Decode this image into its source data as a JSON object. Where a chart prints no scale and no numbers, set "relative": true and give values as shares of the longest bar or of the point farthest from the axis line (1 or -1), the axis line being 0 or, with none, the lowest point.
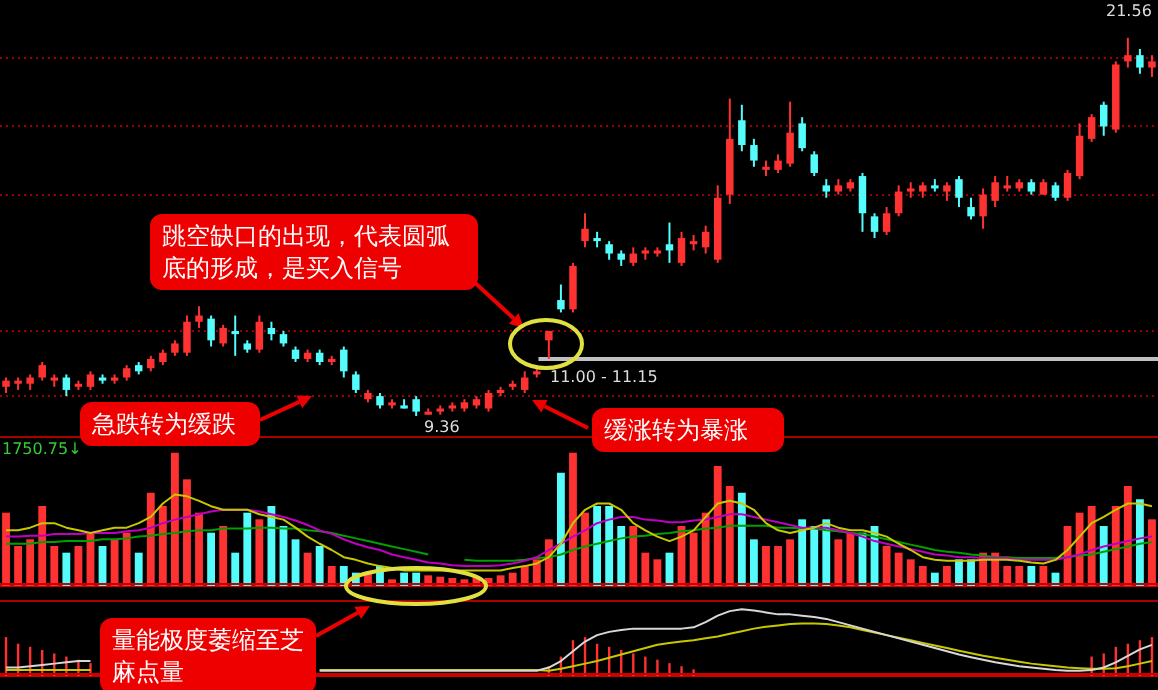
{
  "chart_data": [
    {
      "type": "candlestick",
      "categories": [
        null,
        null,
        null,
        null,
        null,
        null,
        null,
        null,
        null,
        null,
        null,
        null,
        null,
        null,
        null,
        null,
        null,
        null,
        null,
        null,
        null,
        null,
        null,
        null,
        null,
        null,
        null,
        null,
        null,
        null,
        null,
        null,
        null,
        null,
        null,
        null,
        null,
        null,
        null,
        null,
        null,
        null,
        null,
        null,
        null,
        null,
        null,
        null,
        null,
        null,
        null,
        null,
        null,
        null,
        null,
        null,
        null,
        null,
        null,
        null,
        null,
        null,
        null,
        null,
        null,
        null,
        null,
        null,
        null,
        null,
        null,
        null,
        null,
        null,
        null,
        null,
        null,
        null,
        null,
        null,
        null,
        null,
        null,
        null,
        null,
        null,
        null,
        null,
        null,
        null,
        null,
        null,
        null,
        null,
        null,
        null
      ],
      "ohlc": [
        [
          10.3,
          10.6,
          10.1,
          10.5
        ],
        [
          10.4,
          10.6,
          10.2,
          10.5
        ],
        [
          10.4,
          10.7,
          10.2,
          10.6
        ],
        [
          10.6,
          11.1,
          10.5,
          11.0
        ],
        [
          10.5,
          10.7,
          10.3,
          10.6
        ],
        [
          10.6,
          10.7,
          10.0,
          10.2
        ],
        [
          10.3,
          10.5,
          10.2,
          10.4
        ],
        [
          10.3,
          10.8,
          10.2,
          10.7
        ],
        [
          10.6,
          10.7,
          10.4,
          10.5
        ],
        [
          10.5,
          10.7,
          10.4,
          10.6
        ],
        [
          10.6,
          11.0,
          10.5,
          10.9
        ],
        [
          11.0,
          11.1,
          10.7,
          10.8
        ],
        [
          10.9,
          11.3,
          10.8,
          11.2
        ],
        [
          11.1,
          11.5,
          11.0,
          11.4
        ],
        [
          11.4,
          11.8,
          11.3,
          11.7
        ],
        [
          11.4,
          12.6,
          11.3,
          12.4
        ],
        [
          12.4,
          12.9,
          12.2,
          12.6
        ],
        [
          12.5,
          12.6,
          11.6,
          11.8
        ],
        [
          11.7,
          12.3,
          11.6,
          12.2
        ],
        [
          12.1,
          12.6,
          11.3,
          12.0
        ],
        [
          11.7,
          11.8,
          11.4,
          11.5
        ],
        [
          11.5,
          12.6,
          11.4,
          12.4
        ],
        [
          12.2,
          12.4,
          11.8,
          12.0
        ],
        [
          12.0,
          12.1,
          11.6,
          11.7
        ],
        [
          11.5,
          11.6,
          11.1,
          11.2
        ],
        [
          11.2,
          11.5,
          11.1,
          11.4
        ],
        [
          11.4,
          11.5,
          11.0,
          11.1
        ],
        [
          11.1,
          11.3,
          11.0,
          11.2
        ],
        [
          11.5,
          11.6,
          10.6,
          10.8
        ],
        [
          10.7,
          10.8,
          10.1,
          10.2
        ],
        [
          9.9,
          10.2,
          9.8,
          10.1
        ],
        [
          10.0,
          10.1,
          9.6,
          9.7
        ],
        [
          9.7,
          9.9,
          9.6,
          9.8
        ],
        [
          9.7,
          9.9,
          9.6,
          9.6
        ],
        [
          9.9,
          10.0,
          9.36,
          9.5
        ],
        [
          9.4,
          9.6,
          9.4,
          9.5
        ],
        [
          9.5,
          9.7,
          9.4,
          9.6
        ],
        [
          9.6,
          9.8,
          9.5,
          9.7
        ],
        [
          9.6,
          9.9,
          9.5,
          9.8
        ],
        [
          9.7,
          10.0,
          9.6,
          9.9
        ],
        [
          9.6,
          10.2,
          9.5,
          10.1
        ],
        [
          10.1,
          10.3,
          10.0,
          10.2
        ],
        [
          10.3,
          10.5,
          10.2,
          10.4
        ],
        [
          10.2,
          10.8,
          10.1,
          10.6
        ],
        [
          10.7,
          10.9,
          10.6,
          10.8
        ],
        [
          11.8,
          12.1,
          11.2,
          12.1
        ],
        [
          13.1,
          13.6,
          12.7,
          12.8
        ],
        [
          12.8,
          14.3,
          12.7,
          14.2
        ],
        [
          15.0,
          15.9,
          14.8,
          15.4
        ],
        [
          15.1,
          15.3,
          14.8,
          15.0
        ],
        [
          14.9,
          15.0,
          14.4,
          14.6
        ],
        [
          14.6,
          14.7,
          14.2,
          14.4
        ],
        [
          14.3,
          14.8,
          14.2,
          14.6
        ],
        [
          14.6,
          14.8,
          14.4,
          14.7
        ],
        [
          14.6,
          14.8,
          14.5,
          14.7
        ],
        [
          14.9,
          15.6,
          14.3,
          14.7
        ],
        [
          14.3,
          15.3,
          14.2,
          15.1
        ],
        [
          14.9,
          15.2,
          14.7,
          15.0
        ],
        [
          14.8,
          15.5,
          14.6,
          15.3
        ],
        [
          14.4,
          16.8,
          14.3,
          16.4
        ],
        [
          16.5,
          19.6,
          16.2,
          18.3
        ],
        [
          18.9,
          19.4,
          17.9,
          18.1
        ],
        [
          18.1,
          18.3,
          17.4,
          17.6
        ],
        [
          17.3,
          17.6,
          17.1,
          17.4
        ],
        [
          17.3,
          17.8,
          17.2,
          17.6
        ],
        [
          17.5,
          19.5,
          17.4,
          18.5
        ],
        [
          18.8,
          19.0,
          17.9,
          18.0
        ],
        [
          17.8,
          17.9,
          17.1,
          17.2
        ],
        [
          16.8,
          17.0,
          16.4,
          16.6
        ],
        [
          16.6,
          17.0,
          16.5,
          16.8
        ],
        [
          16.7,
          17.0,
          16.6,
          16.9
        ],
        [
          17.1,
          17.2,
          15.3,
          15.9
        ],
        [
          15.8,
          15.9,
          15.1,
          15.3
        ],
        [
          15.3,
          16.1,
          15.2,
          15.9
        ],
        [
          15.9,
          16.8,
          15.8,
          16.6
        ],
        [
          16.6,
          16.9,
          16.4,
          16.7
        ],
        [
          16.6,
          16.9,
          16.4,
          16.8
        ],
        [
          16.8,
          17.0,
          16.6,
          16.7
        ],
        [
          16.6,
          16.9,
          16.3,
          16.8
        ],
        [
          17.0,
          17.1,
          16.1,
          16.4
        ],
        [
          16.1,
          16.4,
          15.7,
          15.8
        ],
        [
          15.8,
          16.7,
          15.4,
          16.5
        ],
        [
          16.3,
          17.1,
          16.1,
          16.9
        ],
        [
          16.7,
          17.1,
          16.6,
          16.8
        ],
        [
          16.7,
          17.0,
          16.6,
          16.9
        ],
        [
          16.9,
          17.0,
          16.5,
          16.6
        ],
        [
          16.5,
          17.0,
          16.5,
          16.9
        ],
        [
          16.8,
          16.9,
          16.3,
          16.4
        ],
        [
          16.4,
          17.3,
          16.3,
          17.2
        ],
        [
          17.1,
          18.8,
          17.0,
          18.4
        ],
        [
          18.3,
          19.1,
          18.2,
          19.0
        ],
        [
          19.4,
          19.5,
          18.4,
          18.7
        ],
        [
          18.6,
          20.8,
          18.5,
          20.7
        ],
        [
          20.8,
          21.56,
          20.6,
          21.0
        ],
        [
          21.0,
          21.2,
          20.4,
          20.6
        ],
        [
          20.6,
          21.0,
          20.3,
          20.8
        ]
      ],
      "colors": [
        "#ff3232",
        "#ff3232",
        "#ff3232",
        "#ff3232",
        "#ff3232",
        "#54fcfc",
        "#ff3232",
        "#ff3232",
        "#54fcfc",
        "#ff3232",
        "#ff3232",
        "#54fcfc",
        "#ff3232",
        "#ff3232",
        "#ff3232",
        "#ff3232",
        "#ff3232",
        "#54fcfc",
        "#ff3232",
        "#54fcfc",
        "#54fcfc",
        "#ff3232",
        "#54fcfc",
        "#54fcfc",
        "#54fcfc",
        "#ff3232",
        "#54fcfc",
        "#ff3232",
        "#54fcfc",
        "#54fcfc",
        "#ff3232",
        "#54fcfc",
        "#ff3232",
        "#54fcfc",
        "#54fcfc",
        "#ff3232",
        "#ff3232",
        "#ff3232",
        "#ff3232",
        "#ff3232",
        "#ff3232",
        "#ff3232",
        "#ff3232",
        "#ff3232",
        "#ff3232",
        "#ff3232",
        "#54fcfc",
        "#ff3232",
        "#ff3232",
        "#54fcfc",
        "#54fcfc",
        "#54fcfc",
        "#ff3232",
        "#ff3232",
        "#ff3232",
        "#54fcfc",
        "#ff3232",
        "#ff3232",
        "#ff3232",
        "#ff3232",
        "#ff3232",
        "#54fcfc",
        "#54fcfc",
        "#ff3232",
        "#ff3232",
        "#ff3232",
        "#54fcfc",
        "#54fcfc",
        "#54fcfc",
        "#ff3232",
        "#ff3232",
        "#54fcfc",
        "#54fcfc",
        "#ff3232",
        "#ff3232",
        "#ff3232",
        "#ff3232",
        "#54fcfc",
        "#ff3232",
        "#54fcfc",
        "#54fcfc",
        "#ff3232",
        "#ff3232",
        "#ff3232",
        "#ff3232",
        "#54fcfc",
        "#ff3232",
        "#54fcfc",
        "#ff3232",
        "#ff3232",
        "#ff3232",
        "#54fcfc",
        "#ff3232",
        "#ff3232",
        "#54fcfc",
        "#ff3232"
      ],
      "yticks": [
        {
          "value": 10.0,
          "label": null
        },
        {
          "value": 12.1,
          "label": null
        },
        {
          "value": 16.5,
          "label": null
        },
        {
          "value": 18.7,
          "label": null
        },
        {
          "value": 20.9,
          "label": null
        }
      ],
      "grid": "y",
      "tick_labels": false,
      "ref_lines": [
        {
          "axis": "y",
          "value": 11.2,
          "color": "#c0c0c0"
        }
      ],
      "annotations": [
        "跳空缺口的出现，代表圆弧底的形成，是买入信号",
        "急跌转为缓跌",
        "缓涨转为暴涨",
        "21.56",
        "9.36",
        "11.00 - 11.15"
      ]
    },
    {
      "type": "bar",
      "relative": true,
      "categories": [
        null,
        null,
        null,
        null,
        null,
        null,
        null,
        null,
        null,
        null,
        null,
        null,
        null,
        null,
        null,
        null,
        null,
        null,
        null,
        null,
        null,
        null,
        null,
        null,
        null,
        null,
        null,
        null,
        null,
        null,
        null,
        null,
        null,
        null,
        null,
        null,
        null,
        null,
        null,
        null,
        null,
        null,
        null,
        null,
        null,
        null,
        null,
        null,
        null,
        null,
        null,
        null,
        null,
        null,
        null,
        null,
        null,
        null,
        null,
        null,
        null,
        null,
        null,
        null,
        null,
        null,
        null,
        null,
        null,
        null,
        null,
        null,
        null,
        null,
        null,
        null,
        null,
        null,
        null,
        null,
        null,
        null,
        null,
        null,
        null,
        null,
        null,
        null,
        null,
        null,
        null,
        null,
        null,
        null,
        null,
        null
      ],
      "colors": [
        "#ff3232",
        "#ff3232",
        "#ff3232",
        "#ff3232",
        "#ff3232",
        "#54fcfc",
        "#ff3232",
        "#ff3232",
        "#54fcfc",
        "#ff3232",
        "#ff3232",
        "#54fcfc",
        "#ff3232",
        "#ff3232",
        "#ff3232",
        "#ff3232",
        "#ff3232",
        "#54fcfc",
        "#ff3232",
        "#54fcfc",
        "#54fcfc",
        "#ff3232",
        "#54fcfc",
        "#54fcfc",
        "#54fcfc",
        "#ff3232",
        "#54fcfc",
        "#ff3232",
        "#54fcfc",
        "#54fcfc",
        "#ff3232",
        "#54fcfc",
        "#ff3232",
        "#54fcfc",
        "#54fcfc",
        "#ff3232",
        "#ff3232",
        "#ff3232",
        "#ff3232",
        "#ff3232",
        "#ff3232",
        "#ff3232",
        "#ff3232",
        "#ff3232",
        "#ff3232",
        "#ff3232",
        "#54fcfc",
        "#ff3232",
        "#ff3232",
        "#54fcfc",
        "#54fcfc",
        "#54fcfc",
        "#ff3232",
        "#ff3232",
        "#ff3232",
        "#54fcfc",
        "#ff3232",
        "#ff3232",
        "#ff3232",
        "#ff3232",
        "#ff3232",
        "#54fcfc",
        "#54fcfc",
        "#ff3232",
        "#ff3232",
        "#ff3232",
        "#54fcfc",
        "#54fcfc",
        "#54fcfc",
        "#ff3232",
        "#ff3232",
        "#54fcfc",
        "#54fcfc",
        "#ff3232",
        "#ff3232",
        "#ff3232",
        "#ff3232",
        "#54fcfc",
        "#ff3232",
        "#54fcfc",
        "#54fcfc",
        "#ff3232",
        "#ff3232",
        "#ff3232",
        "#ff3232",
        "#54fcfc",
        "#ff3232",
        "#54fcfc",
        "#ff3232",
        "#ff3232",
        "#ff3232",
        "#54fcfc",
        "#ff3232",
        "#ff3232",
        "#54fcfc",
        "#ff3232"
      ],
      "values": [
        0.55,
        0.3,
        0.35,
        0.6,
        0.3,
        0.25,
        0.3,
        0.4,
        0.3,
        0.35,
        0.4,
        0.25,
        0.7,
        0.6,
        1,
        0.8,
        0.55,
        0.4,
        0.45,
        0.25,
        0.55,
        0.5,
        0.6,
        0.45,
        0.35,
        0.25,
        0.3,
        0.15,
        0.15,
        0.1,
        0.1,
        0.15,
        0.05,
        0.1,
        0.1,
        0.08,
        0.07,
        0.06,
        0.05,
        0.07,
        0.06,
        0.08,
        0.1,
        0.15,
        0.2,
        0.35,
        0.85,
        1,
        0.55,
        0.6,
        0.6,
        0.45,
        0.45,
        0.25,
        0.2,
        0.25,
        0.45,
        0.4,
        0.55,
        0.9,
        0.75,
        0.7,
        0.35,
        0.3,
        0.3,
        0.35,
        0.5,
        0.45,
        0.5,
        0.35,
        0.4,
        0.4,
        0.45,
        0.3,
        0.25,
        0.2,
        0.15,
        0.1,
        0.15,
        0.2,
        0.2,
        0.25,
        0.25,
        0.15,
        0.15,
        0.15,
        0.15,
        0.1,
        0.45,
        0.55,
        0.6,
        0.45,
        0.6,
        0.75,
        0.65,
        0.5
      ],
      "annotations": [
        "1750.75↓",
        "量能极度萎缩至芝麻点量"
      ]
    },
    {
      "type": "line",
      "relative": true,
      "categories": [
        null,
        null,
        null,
        null,
        null,
        null,
        null,
        null,
        null,
        null,
        null,
        null,
        null,
        null,
        null,
        null,
        null,
        null,
        null,
        null,
        null,
        null,
        null,
        null,
        null,
        null,
        null,
        null,
        null,
        null,
        null,
        null,
        null,
        null,
        null,
        null,
        null,
        null,
        null,
        null,
        null,
        null,
        null,
        null,
        null,
        null,
        null,
        null,
        null,
        null,
        null,
        null,
        null,
        null,
        null,
        null,
        null,
        null,
        null,
        null,
        null,
        null,
        null,
        null,
        null,
        null,
        null,
        null,
        null,
        null,
        null,
        null,
        null,
        null,
        null,
        null,
        null,
        null,
        null,
        null,
        null,
        null,
        null,
        null,
        null,
        null,
        null,
        null,
        null,
        null,
        null,
        null,
        null,
        null,
        null,
        null
      ],
      "series": [
        {
          "color": "#c8c800",
          "values": [
            0.6,
            0.6,
            0.63,
            0.68,
            0.68,
            0.63,
            0.6,
            0.57,
            0.6,
            0.63,
            0.63,
            0.68,
            0.75,
            0.9,
            1,
            0.98,
            0.93,
            0.87,
            0.83,
            0.83,
            0.83,
            0.78,
            0.75,
            0.72,
            0.63,
            0.53,
            0.45,
            0.38,
            0.3,
            0.27,
            0.23,
            0.2,
            0.18,
            0.15,
            0.15,
            0.15,
            0.15,
            0.15,
            0.15,
            0.15,
            0.15,
            0.15,
            0.18,
            0.2,
            0.23,
            0.3,
            0.45,
            0.68,
            0.83,
            0.9,
            0.9,
            0.83,
            0.68,
            0.6,
            0.53,
            0.48,
            0.53,
            0.6,
            0.75,
            0.9,
            0.93,
            0.9,
            0.83,
            0.68,
            0.6,
            0.57,
            0.6,
            0.63,
            0.68,
            0.63,
            0.6,
            0.6,
            0.57,
            0.53,
            0.45,
            0.38,
            0.3,
            0.27,
            0.26,
            0.26,
            0.26,
            0.27,
            0.27,
            0.27,
            0.26,
            0.24,
            0.23,
            0.27,
            0.38,
            0.53,
            0.68,
            0.75,
            0.83,
            0.9,
            0.9,
            0.87
          ]
        },
        {
          "color": "#c000c0",
          "values": [
            0.53,
            0.53,
            0.54,
            0.54,
            0.56,
            0.56,
            0.56,
            0.57,
            0.57,
            0.57,
            0.59,
            0.6,
            0.63,
            0.68,
            0.72,
            0.75,
            0.78,
            0.81,
            0.83,
            0.83,
            0.83,
            0.81,
            0.78,
            0.75,
            0.71,
            0.66,
            0.6,
            0.56,
            0.5,
            0.45,
            0.41,
            0.38,
            0.33,
            0.3,
            0.27,
            0.24,
            0.23,
            0.21,
            0.2,
            0.2,
            0.2,
            0.21,
            0.23,
            0.26,
            0.3,
            0.38,
            0.45,
            0.53,
            0.6,
            0.68,
            0.72,
            0.75,
            0.75,
            0.72,
            0.71,
            0.69,
            0.69,
            0.71,
            0.72,
            0.75,
            0.78,
            0.78,
            0.75,
            0.72,
            0.69,
            0.66,
            0.63,
            0.63,
            0.63,
            0.6,
            0.57,
            0.53,
            0.48,
            0.45,
            0.42,
            0.39,
            0.36,
            0.33,
            0.32,
            0.3,
            0.3,
            0.29,
            0.29,
            0.29,
            0.27,
            0.27,
            0.27,
            0.27,
            0.3,
            0.33,
            0.38,
            0.42,
            0.45,
            0.48,
            0.51,
            0.53
          ]
        },
        {
          "color": "#00a000",
          "values": [
            0.45,
            0.45,
            0.45,
            0.47,
            0.47,
            0.48,
            0.48,
            0.48,
            0.5,
            0.5,
            0.51,
            0.53,
            0.54,
            0.56,
            0.57,
            0.59,
            0.6,
            0.6,
            0.62,
            0.62,
            0.62,
            0.63,
            0.63,
            0.62,
            0.62,
            0.6,
            0.59,
            0.57,
            0.54,
            0.51,
            0.48,
            0.45,
            0.42,
            0.39,
            0.36,
            0.33,
            null,
            null,
            0.27,
            0.26,
            0.26,
            0.26,
            0.26,
            0.27,
            0.29,
            0.3,
            0.33,
            0.38,
            0.42,
            0.45,
            0.48,
            0.51,
            0.53,
            0.54,
            0.56,
            0.57,
            0.59,
            0.6,
            0.62,
            0.63,
            0.65,
            0.65,
            0.65,
            0.65,
            0.63,
            0.63,
            0.62,
            0.62,
            0.6,
            0.59,
            0.57,
            0.56,
            0.53,
            0.5,
            0.47,
            0.44,
            0.41,
            0.38,
            0.36,
            0.35,
            0.33,
            0.32,
            0.3,
            0.3,
            0.29,
            0.29,
            0.29,
            0.29,
            0.3,
            0.32,
            0.33,
            0.36,
            0.39,
            0.42,
            0.45,
            0.47
          ]
        }
      ]
    },
    {
      "type": "bar",
      "relative": true,
      "categories": [
        null,
        null,
        null,
        null,
        null,
        null,
        null,
        null,
        null,
        null,
        null,
        null,
        null,
        null,
        null,
        null,
        null,
        null,
        null,
        null,
        null,
        null,
        null,
        null,
        null,
        null,
        null,
        null,
        null,
        null,
        null,
        null,
        null,
        null,
        null,
        null,
        null,
        null,
        null,
        null,
        null,
        null,
        null,
        null,
        null,
        null,
        null,
        null,
        null,
        null,
        null,
        null,
        null,
        null,
        null,
        null,
        null,
        null,
        null,
        null,
        null,
        null,
        null,
        null,
        null,
        null,
        null,
        null,
        null,
        null,
        null,
        null,
        null,
        null,
        null,
        null,
        null,
        null,
        null,
        null,
        null,
        null,
        null,
        null,
        null,
        null,
        null,
        null,
        null,
        null,
        null,
        null,
        null,
        null,
        null,
        null
      ],
      "color": "#ff3030",
      "values": [
        1,
        0.83,
        0.75,
        0.67,
        0.58,
        0.5,
        0.42,
        0.33,
        null,
        null,
        null,
        null,
        null,
        null,
        null,
        null,
        null,
        null,
        null,
        null,
        null,
        null,
        null,
        null,
        null,
        null,
        null,
        null,
        null,
        null,
        null,
        null,
        null,
        null,
        null,
        null,
        null,
        null,
        null,
        null,
        null,
        null,
        null,
        null,
        null,
        0.25,
        0.5,
        0.92,
        1,
        0.83,
        0.75,
        0.67,
        0.58,
        0.5,
        0.42,
        0.33,
        0.25,
        0.17,
        null,
        null,
        null,
        null,
        null,
        null,
        null,
        null,
        null,
        null,
        null,
        null,
        null,
        null,
        null,
        null,
        null,
        null,
        null,
        null,
        null,
        null,
        null,
        null,
        null,
        null,
        null,
        null,
        null,
        null,
        null,
        null,
        0.5,
        0.58,
        0.75,
        0.83,
        0.92,
        1
      ]
    },
    {
      "type": "line",
      "relative": true,
      "categories": [
        null,
        null,
        null,
        null,
        null,
        null,
        null,
        null,
        null,
        null,
        null,
        null,
        null,
        null,
        null,
        null,
        null,
        null,
        null,
        null,
        null,
        null,
        null,
        null,
        null,
        null,
        null,
        null,
        null,
        null,
        null,
        null,
        null,
        null,
        null,
        null,
        null,
        null,
        null,
        null,
        null,
        null,
        null,
        null,
        null,
        null,
        null,
        null,
        null,
        null,
        null,
        null,
        null,
        null,
        null,
        null,
        null,
        null,
        null,
        null,
        null,
        null,
        null,
        null,
        null,
        null,
        null,
        null,
        null,
        null,
        null,
        null,
        null,
        null,
        null,
        null,
        null,
        null,
        null,
        null,
        null,
        null,
        null,
        null,
        null,
        null,
        null,
        null,
        null,
        null,
        null,
        null,
        null,
        null,
        null,
        null
      ],
      "series": [
        {
          "color": "#d8d8d8",
          "values": [
            0.1,
            0.1,
            0.12,
            0.14,
            0.16,
            0.18,
            0.2,
            0.2,
            null,
            null,
            null,
            null,
            null,
            null,
            null,
            null,
            null,
            null,
            null,
            null,
            null,
            null,
            null,
            null,
            null,
            null,
            0.05,
            0.05,
            0.05,
            0.05,
            0.05,
            0.05,
            0.05,
            0.05,
            0.05,
            0.05,
            0.05,
            0.05,
            0.05,
            0.05,
            0.05,
            0.05,
            0.05,
            0.05,
            0.05,
            0.1,
            0.2,
            0.35,
            0.5,
            0.6,
            0.65,
            0.68,
            0.7,
            0.7,
            0.7,
            0.7,
            0.7,
            0.72,
            0.8,
            0.9,
            0.97,
            1,
            0.98,
            0.95,
            0.92,
            0.92,
            0.9,
            0.88,
            0.85,
            0.8,
            0.75,
            0.7,
            0.65,
            0.6,
            0.55,
            0.5,
            0.45,
            0.4,
            0.35,
            0.3,
            0.26,
            0.22,
            0.18,
            0.15,
            0.12,
            0.1,
            0.08,
            0.06,
            0.05,
            0.05,
            0.06,
            0.1,
            0.18,
            0.28,
            0.38,
            0.45
          ]
        },
        {
          "color": "#c8c800",
          "values": [
            0.06,
            0.06,
            0.06,
            0.06,
            0.06,
            0.06,
            0.06,
            0.06,
            null,
            null,
            null,
            null,
            null,
            null,
            null,
            null,
            null,
            null,
            null,
            null,
            null,
            null,
            null,
            null,
            null,
            null,
            0.06,
            0.06,
            0.06,
            0.06,
            0.06,
            0.06,
            0.06,
            0.06,
            0.06,
            0.06,
            0.06,
            0.06,
            0.06,
            0.06,
            0.06,
            0.06,
            0.06,
            0.06,
            0.06,
            0.05,
            0.08,
            0.12,
            0.16,
            0.2,
            0.25,
            0.3,
            0.35,
            0.4,
            0.45,
            0.48,
            0.5,
            0.52,
            0.55,
            0.58,
            0.62,
            0.66,
            0.7,
            0.73,
            0.75,
            0.77,
            0.78,
            0.78,
            0.77,
            0.75,
            0.72,
            0.68,
            0.64,
            0.6,
            0.56,
            0.52,
            0.48,
            0.44,
            0.4,
            0.36,
            0.32,
            0.28,
            0.25,
            0.22,
            0.19,
            0.16,
            0.14,
            0.12,
            0.1,
            0.09,
            0.08,
            0.08,
            0.09,
            0.12,
            0.16,
            0.2
          ]
        }
      ]
    }
  ]
}
